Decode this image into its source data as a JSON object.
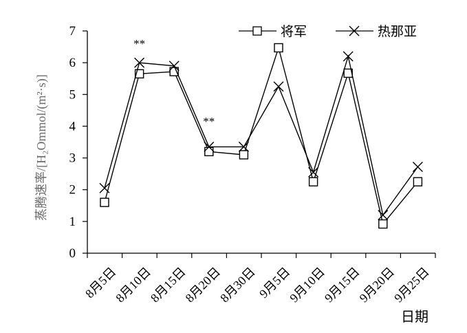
{
  "chart_data": {
    "type": "line",
    "title": "",
    "ylabel": "蒸腾速率/[H₂Ommol/(m²·s)]",
    "xlabel": "日期",
    "ylim": [
      0,
      7
    ],
    "yticks": [
      0,
      1,
      2,
      3,
      4,
      5,
      6,
      7
    ],
    "categories": [
      "8月5日",
      "8月10日",
      "8月15日",
      "8月20日",
      "8月30日",
      "9月5日",
      "9月10日",
      "9月15日",
      "9月20日",
      "9月25日"
    ],
    "legend_position": "top-right",
    "grid": false,
    "series": [
      {
        "name": "将军",
        "marker": "square",
        "color": "#000000",
        "values": [
          1.6,
          5.65,
          5.72,
          3.2,
          3.1,
          6.47,
          2.25,
          5.67,
          0.92,
          2.25
        ]
      },
      {
        "name": "热那亚",
        "marker": "x",
        "color": "#000000",
        "values": [
          2.05,
          6.0,
          5.9,
          3.35,
          3.35,
          5.25,
          2.55,
          6.2,
          1.2,
          2.72
        ]
      }
    ],
    "annotations": [
      {
        "text": "**",
        "category": "8月10日",
        "y": 6.7
      },
      {
        "text": "**",
        "category": "8月20日",
        "y": 4.25
      }
    ]
  }
}
